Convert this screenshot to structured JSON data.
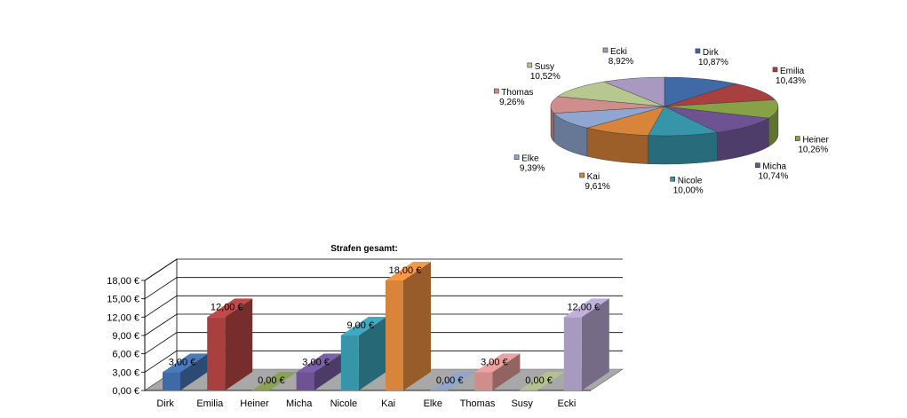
{
  "chart_data": [
    {
      "type": "pie",
      "title": "",
      "legend": "labels-beside-slices",
      "slices": [
        {
          "label": "Dirk",
          "pct_label": "10,87%",
          "value": 10.87,
          "color": "#3f6aa5"
        },
        {
          "label": "Emilia",
          "pct_label": "10,43%",
          "value": 10.43,
          "color": "#a8403f"
        },
        {
          "label": "Heiner",
          "pct_label": "10,26%",
          "value": 10.26,
          "color": "#86a146"
        },
        {
          "label": "Micha",
          "pct_label": "10,74%",
          "value": 10.74,
          "color": "#6d5393"
        },
        {
          "label": "Nicole",
          "pct_label": "10,00%",
          "value": 10.0,
          "color": "#3795aa"
        },
        {
          "label": "Kai",
          "pct_label": "9,61%",
          "value": 9.61,
          "color": "#d8843a"
        },
        {
          "label": "Elke",
          "pct_label": "9,39%",
          "value": 9.39,
          "color": "#8ea6d0"
        },
        {
          "label": "Thomas",
          "pct_label": "9,26%",
          "value": 9.26,
          "color": "#cf8d8b"
        },
        {
          "label": "Susy",
          "pct_label": "10,52%",
          "value": 10.52,
          "color": "#b6c78f"
        },
        {
          "label": "Ecki",
          "pct_label": "8,92%",
          "value": 8.92,
          "color": "#a799bf"
        }
      ]
    },
    {
      "type": "bar",
      "title": "Strafen gesamt:",
      "xlabel": "",
      "ylabel": "",
      "ylim": [
        0,
        18
      ],
      "yticks": [
        0,
        3,
        6,
        9,
        12,
        15,
        18
      ],
      "ytick_labels": [
        "0,00 €",
        "3,00 €",
        "6,00 €",
        "9,00 €",
        "12,00 €",
        "15,00 €",
        "18,00 €"
      ],
      "grid": true,
      "categories": [
        "Dirk",
        "Emilia",
        "Heiner",
        "Micha",
        "Nicole",
        "Kai",
        "Elke",
        "Thomas",
        "Susy",
        "Ecki"
      ],
      "values": [
        3,
        12,
        0,
        3,
        9,
        18,
        0,
        3,
        0,
        12
      ],
      "value_labels": [
        "3,00 €",
        "12,00 €",
        "0,00 €",
        "3,00 €",
        "9,00 €",
        "18,00 €",
        "0,00 €",
        "3,00 €",
        "0,00 €",
        "12,00 €"
      ],
      "colors": [
        "#3f6aa5",
        "#a8403f",
        "#86a146",
        "#6d5393",
        "#3795aa",
        "#d8843a",
        "#8ea6d0",
        "#cf8d8b",
        "#b6c78f",
        "#a799bf"
      ]
    }
  ]
}
